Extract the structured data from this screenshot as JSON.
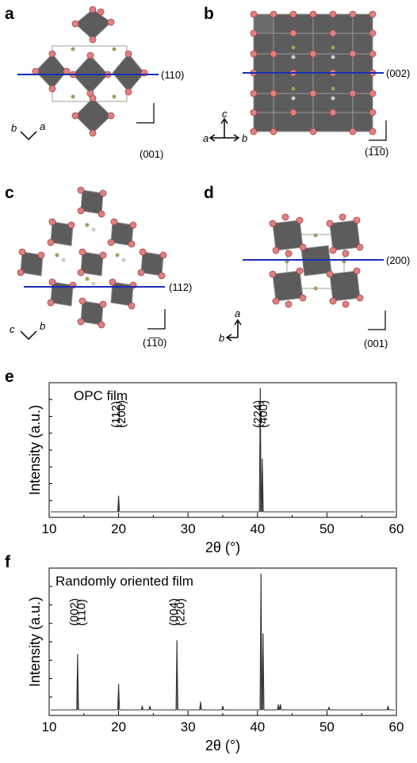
{
  "panels": {
    "a": {
      "label": "a",
      "plane": "(110)",
      "view": "(001)",
      "axis1": "b",
      "axis2": "a"
    },
    "b": {
      "label": "b",
      "plane": "(002)",
      "view": "(1̅1̅0)",
      "axis_up": "c",
      "axis_left": "a",
      "axis_right": "b"
    },
    "c": {
      "label": "c",
      "plane": "(112)",
      "view": "(1̅1̅0)",
      "axis1": "c",
      "axis2": "b"
    },
    "d": {
      "label": "d",
      "plane": "(200)",
      "view": "(001)",
      "axis_up": "a",
      "axis_left": "b"
    }
  },
  "chart_data": [
    {
      "panel": "e",
      "type": "line",
      "title": "OPC film",
      "xlabel": "2θ (°)",
      "ylabel": "Intensity (a.u.)",
      "xlim": [
        10,
        60
      ],
      "ylim": [
        0,
        100
      ],
      "xticks": [
        10,
        20,
        30,
        40,
        50,
        60
      ],
      "peaks": [
        {
          "x": 20.0,
          "y": 13
        },
        {
          "x": 40.4,
          "y": 100
        },
        {
          "x": 40.7,
          "y": 43
        }
      ],
      "annotations": [
        {
          "text": "(112)",
          "x": 19.6
        },
        {
          "text": "(200)",
          "x": 20.4
        },
        {
          "text": "(224)",
          "x": 40.0
        },
        {
          "text": "(400)",
          "x": 40.8
        }
      ]
    },
    {
      "panel": "f",
      "type": "line",
      "title": "Randomly oriented film",
      "xlabel": "2θ (°)",
      "ylabel": "Intensity (a.u.)",
      "xlim": [
        10,
        60
      ],
      "ylim": [
        0,
        100
      ],
      "xticks": [
        10,
        20,
        30,
        40,
        50,
        60
      ],
      "peaks": [
        {
          "x": 14.1,
          "y": 41
        },
        {
          "x": 20.0,
          "y": 19
        },
        {
          "x": 23.4,
          "y": 3
        },
        {
          "x": 24.5,
          "y": 3
        },
        {
          "x": 28.4,
          "y": 51
        },
        {
          "x": 31.8,
          "y": 6
        },
        {
          "x": 35.0,
          "y": 3
        },
        {
          "x": 40.5,
          "y": 100
        },
        {
          "x": 40.8,
          "y": 56
        },
        {
          "x": 43.0,
          "y": 4
        },
        {
          "x": 43.3,
          "y": 4
        },
        {
          "x": 50.3,
          "y": 2
        },
        {
          "x": 58.8,
          "y": 3
        }
      ],
      "annotations": [
        {
          "text": "(002)",
          "x": 13.6
        },
        {
          "text": "(110)",
          "x": 14.6
        },
        {
          "text": "(004)",
          "x": 27.9
        },
        {
          "text": "(220)",
          "x": 28.9
        }
      ]
    }
  ]
}
